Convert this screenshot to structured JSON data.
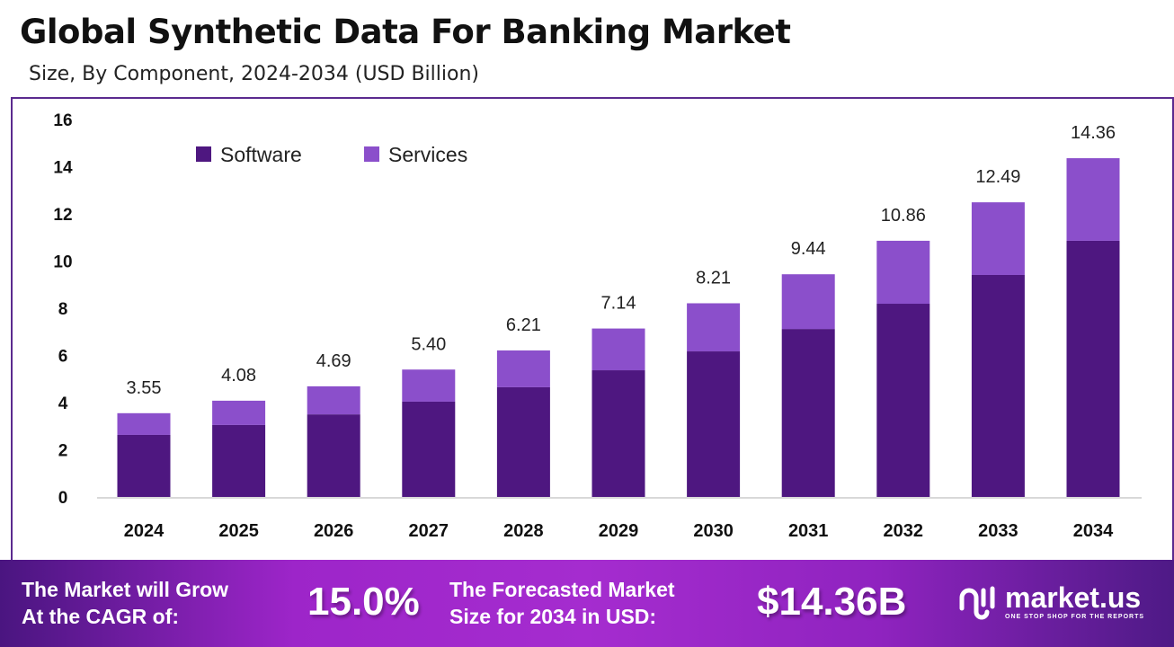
{
  "chart_data": {
    "type": "bar",
    "stacked": true,
    "title": "Global Synthetic Data For Banking Market",
    "subtitle": "Size, By Component, 2024-2034 (USD Billion)",
    "categories": [
      "2024",
      "2025",
      "2026",
      "2027",
      "2028",
      "2029",
      "2030",
      "2031",
      "2032",
      "2033",
      "2034"
    ],
    "series": [
      {
        "name": "Software",
        "color": "#4e1780",
        "values": [
          2.63,
          3.05,
          3.5,
          4.04,
          4.65,
          5.37,
          6.17,
          7.12,
          8.19,
          9.41,
          10.86
        ]
      },
      {
        "name": "Services",
        "color": "#8b4fcb",
        "values": [
          0.92,
          1.03,
          1.19,
          1.36,
          1.56,
          1.77,
          2.04,
          2.32,
          2.67,
          3.08,
          3.5
        ]
      }
    ],
    "totals": [
      "3.55",
      "4.08",
      "4.69",
      "5.40",
      "6.21",
      "7.14",
      "8.21",
      "9.44",
      "10.86",
      "12.49",
      "14.36"
    ],
    "ylim": [
      0,
      16
    ],
    "yticks": [
      "0",
      "2",
      "4",
      "6",
      "8",
      "10",
      "12",
      "14",
      "16"
    ],
    "grid": false,
    "legend_position": "top-left"
  },
  "footer": {
    "cagr_label_line1": "The Market will Grow",
    "cagr_label_line2": "At the CAGR of:",
    "cagr_value": "15.0%",
    "forecast_label_line1": "The Forecasted Market",
    "forecast_label_line2": "Size for 2034 in USD:",
    "forecast_value": "$14.36B",
    "brand_name": "market.us",
    "brand_tagline": "ONE STOP SHOP FOR THE REPORTS"
  }
}
